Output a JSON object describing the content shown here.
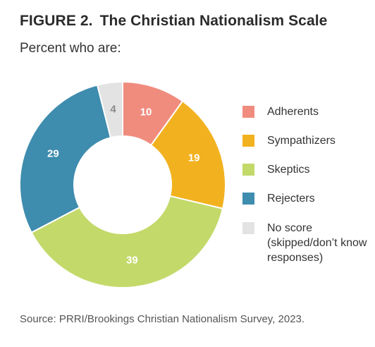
{
  "figure": {
    "number": "FIGURE 2.",
    "title": "The Christian Nationalism Scale",
    "subtitle": "Percent who are:",
    "source": "Source: PRRI/Brookings Christian Nationalism Survey, 2023."
  },
  "chart_data": {
    "type": "pie",
    "variant": "donut",
    "title": "The Christian Nationalism Scale",
    "subtitle": "Percent who are:",
    "legend_position": "right",
    "slices": [
      {
        "label": "Adherents",
        "value": 10,
        "display": "10",
        "color": "#F08C7E",
        "text_color": "#ffffff"
      },
      {
        "label": "Sympathizers",
        "value": 19,
        "display": "19",
        "color": "#F2B21F",
        "text_color": "#ffffff"
      },
      {
        "label": "Skeptics",
        "value": 39,
        "display": "39",
        "color": "#C3D96A",
        "text_color": "#ffffff"
      },
      {
        "label": "Rejecters",
        "value": 29,
        "display": "29",
        "color": "#3E8CAE",
        "text_color": "#ffffff"
      },
      {
        "label": "No score (skipped/don’t know responses)",
        "value": 4,
        "display": "4",
        "color": "#E3E3E3",
        "text_color": "#8a8a8a"
      }
    ]
  },
  "legend": {
    "items": [
      {
        "label": "Adherents",
        "color": "#F08C7E"
      },
      {
        "label": "Sympathizers",
        "color": "#F2B21F"
      },
      {
        "label": "Skeptics",
        "color": "#C3D96A"
      },
      {
        "label": "Rejecters",
        "color": "#3E8CAE"
      },
      {
        "label": "No score (skipped/don’t know responses)",
        "color": "#E3E3E3"
      }
    ]
  }
}
